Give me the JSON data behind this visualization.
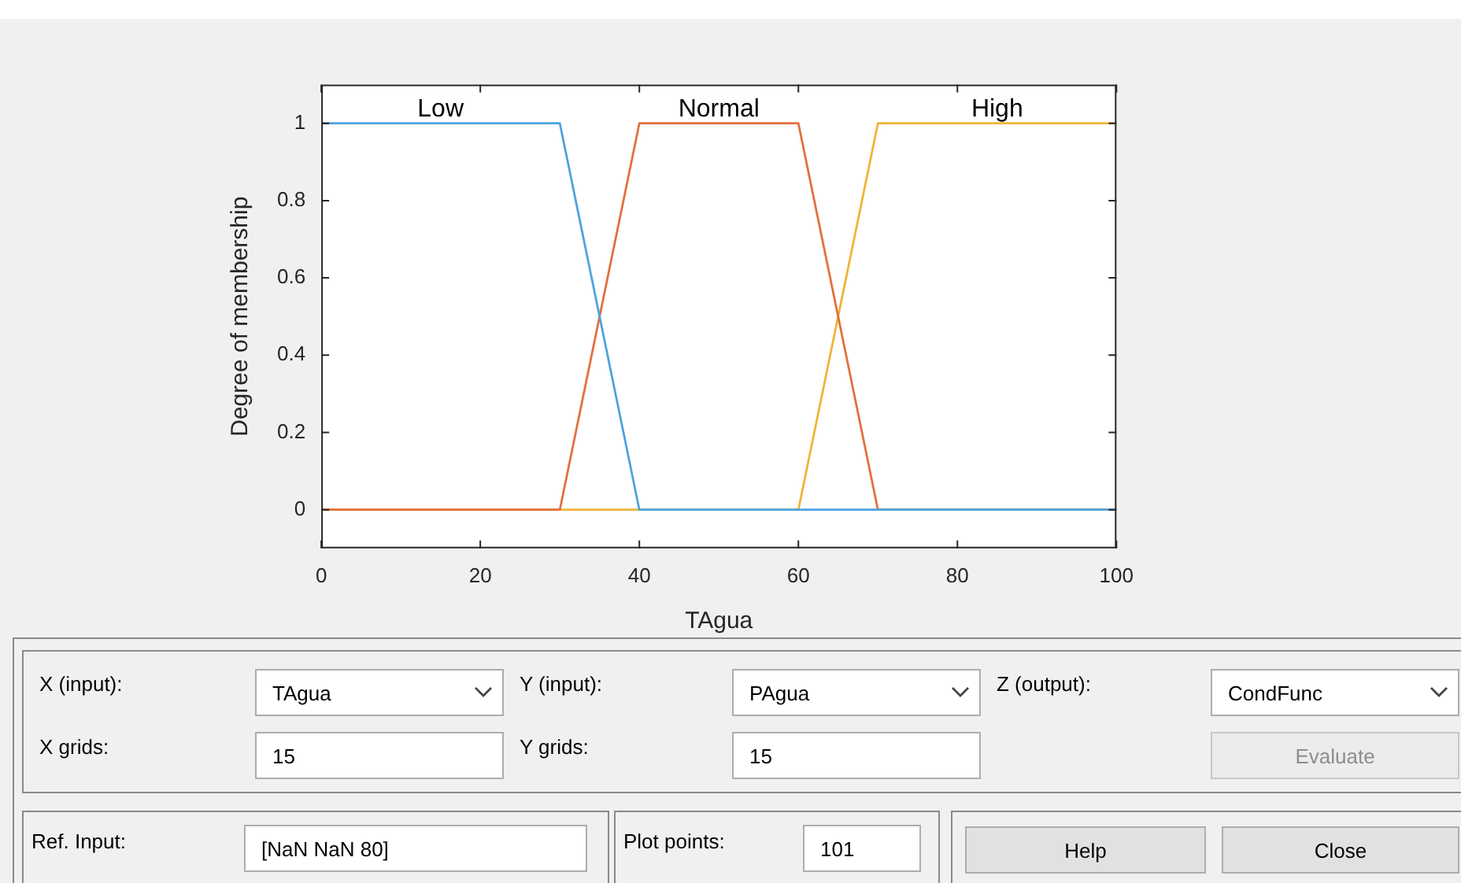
{
  "chart_data": {
    "type": "line",
    "xlabel": "TAgua",
    "ylabel": "Degree of membership",
    "xlim": [
      0,
      100
    ],
    "xticks": [
      0,
      20,
      40,
      60,
      80,
      100
    ],
    "ylim": [
      -0.1,
      1.1
    ],
    "yticks": [
      0,
      0.2,
      0.4,
      0.6,
      0.8,
      1
    ],
    "x": [
      0,
      30,
      40,
      60,
      70,
      100
    ],
    "series": [
      {
        "name": "Low",
        "color": "#4da3dd",
        "values": [
          1,
          1,
          0,
          0,
          0,
          0
        ]
      },
      {
        "name": "Normal",
        "color": "#e2703e",
        "values": [
          0,
          0,
          1,
          1,
          0,
          0
        ]
      },
      {
        "name": "High",
        "color": "#eeb538",
        "values": [
          0,
          0,
          0,
          0,
          1,
          1
        ]
      }
    ],
    "legend": false,
    "annotations": [
      "X (input):",
      "TAgua",
      "Y (input):",
      "PAgua",
      "Z (output):",
      "CondFunc",
      "X grids:",
      "15",
      "Y grids:",
      "15",
      "Evaluate",
      "Ref. Input:",
      "[NaN NaN 80]",
      "Plot points:",
      "101",
      "Help",
      "Close"
    ]
  }
}
